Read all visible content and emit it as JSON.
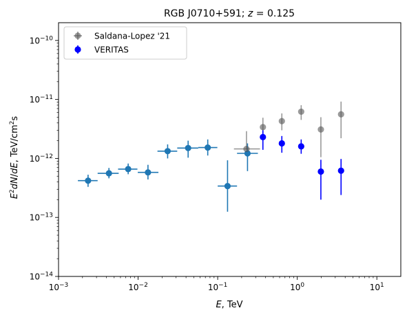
{
  "chart_data": {
    "type": "scatter",
    "title": "RGB J0710+591; z = 0.125",
    "title_parts": {
      "prefix": "RGB J0710+591; ",
      "var": "z",
      "suffix": " = 0.125"
    },
    "xlabel": "E, TeV",
    "ylabel": "E²dN/dE, TeV/cm²s",
    "x_scale": "log",
    "y_scale": "log",
    "xlim": [
      0.001,
      20
    ],
    "ylim": [
      1e-14,
      2e-10
    ],
    "x_ticks": [
      {
        "value": 0.001,
        "mant": "10",
        "exp": "−3"
      },
      {
        "value": 0.01,
        "mant": "10",
        "exp": "−2"
      },
      {
        "value": 0.1,
        "mant": "10",
        "exp": "−1"
      },
      {
        "value": 1,
        "mant": "10",
        "exp": "0"
      },
      {
        "value": 10,
        "mant": "10",
        "exp": "1"
      }
    ],
    "y_ticks": [
      {
        "value": 1e-14,
        "mant": "10",
        "exp": "−14"
      },
      {
        "value": 1e-13,
        "mant": "10",
        "exp": "−13"
      },
      {
        "value": 1e-12,
        "mant": "10",
        "exp": "−12"
      },
      {
        "value": 1e-11,
        "mant": "10",
        "exp": "−11"
      },
      {
        "value": 1e-10,
        "mant": "10",
        "exp": "−10"
      }
    ],
    "legend_position": "top-left",
    "grid": false,
    "series": [
      {
        "name": "Saldana-Lopez '21",
        "color": "#555555",
        "marker": "circle-translucent",
        "points": [
          {
            "x": 0.23,
            "y": 1.45e-12,
            "ylo": 1.4e-12,
            "yhi": 2.9e-12,
            "xlo": 0.16,
            "xhi": 0.34
          },
          {
            "x": 0.37,
            "y": 3.4e-12,
            "ylo": 2.2e-12,
            "yhi": 4.9e-12
          },
          {
            "x": 0.64,
            "y": 4.3e-12,
            "ylo": 3e-12,
            "yhi": 5.8e-12
          },
          {
            "x": 1.12,
            "y": 6.2e-12,
            "ylo": 4.5e-12,
            "yhi": 8e-12
          },
          {
            "x": 1.98,
            "y": 3.1e-12,
            "ylo": 1.05e-12,
            "yhi": 5e-12
          },
          {
            "x": 3.55,
            "y": 5.6e-12,
            "ylo": 2.2e-12,
            "yhi": 9.2e-12
          }
        ]
      },
      {
        "name": "VERITAS",
        "color": "#0000ff",
        "marker": "circle",
        "points": [
          {
            "x": 0.37,
            "y": 2.3e-12,
            "ylo": 1.4e-12,
            "yhi": 3e-12
          },
          {
            "x": 0.64,
            "y": 1.8e-12,
            "ylo": 1.25e-12,
            "yhi": 2.4e-12
          },
          {
            "x": 1.12,
            "y": 1.6e-12,
            "ylo": 1.2e-12,
            "yhi": 2.1e-12
          },
          {
            "x": 1.98,
            "y": 6e-13,
            "ylo": 2e-13,
            "yhi": 9.5e-13
          },
          {
            "x": 3.55,
            "y": 6.2e-13,
            "ylo": 2.4e-13,
            "yhi": 9.8e-13
          }
        ]
      },
      {
        "name": "",
        "color": "#1f77b4",
        "marker": "circle",
        "points": [
          {
            "x": 0.00235,
            "y": 4.2e-13,
            "ylo": 3.3e-13,
            "yhi": 5.3e-13,
            "xlo": 0.00175,
            "xhi": 0.0031
          },
          {
            "x": 0.0043,
            "y": 5.6e-13,
            "ylo": 4.6e-13,
            "yhi": 6.9e-13,
            "xlo": 0.0031,
            "xhi": 0.0057
          },
          {
            "x": 0.0075,
            "y": 6.6e-13,
            "ylo": 5.4e-13,
            "yhi": 8.2e-13,
            "xlo": 0.0056,
            "xhi": 0.0098
          },
          {
            "x": 0.0133,
            "y": 5.8e-13,
            "ylo": 4.4e-13,
            "yhi": 7.8e-13,
            "xlo": 0.0099,
            "xhi": 0.018
          },
          {
            "x": 0.0235,
            "y": 1.33e-12,
            "ylo": 1e-12,
            "yhi": 1.73e-12,
            "xlo": 0.0175,
            "xhi": 0.031
          },
          {
            "x": 0.0425,
            "y": 1.5e-12,
            "ylo": 1.03e-12,
            "yhi": 2e-12,
            "xlo": 0.031,
            "xhi": 0.057
          },
          {
            "x": 0.075,
            "y": 1.53e-12,
            "ylo": 1.12e-12,
            "yhi": 2.1e-12,
            "xlo": 0.057,
            "xhi": 0.099
          },
          {
            "x": 0.133,
            "y": 3.4e-13,
            "ylo": 1.25e-13,
            "yhi": 9.3e-13,
            "xlo": 0.1,
            "xhi": 0.175
          },
          {
            "x": 0.237,
            "y": 1.22e-12,
            "ylo": 6.1e-13,
            "yhi": 1.8e-12,
            "xlo": 0.175,
            "xhi": 0.32
          }
        ]
      }
    ]
  }
}
